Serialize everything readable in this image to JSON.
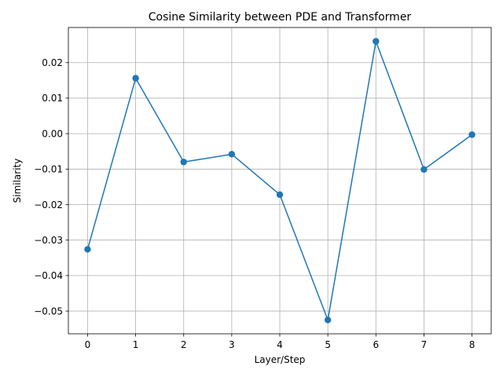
{
  "chart_data": {
    "type": "line",
    "title": "Cosine Similarity between PDE and Transformer",
    "xlabel": "Layer/Step",
    "ylabel": "Similarity",
    "x": [
      0,
      1,
      2,
      3,
      4,
      5,
      6,
      7,
      8
    ],
    "series": [
      {
        "values": [
          -0.0326,
          0.0156,
          -0.008,
          -0.0058,
          -0.0172,
          -0.0525,
          0.026,
          -0.0101,
          -0.0003
        ],
        "color": "#1f77b4",
        "marker": "circle"
      }
    ],
    "xlim": [
      -0.4,
      8.4
    ],
    "ylim": [
      -0.0564,
      0.0299
    ],
    "xticks": [
      0,
      1,
      2,
      3,
      4,
      5,
      6,
      7,
      8
    ],
    "xtick_labels": [
      "0",
      "1",
      "2",
      "3",
      "4",
      "5",
      "6",
      "7",
      "8"
    ],
    "yticks": [
      -0.05,
      -0.04,
      -0.03,
      -0.02,
      -0.01,
      0.0,
      0.01,
      0.02
    ],
    "ytick_labels": [
      "−0.05",
      "−0.04",
      "−0.03",
      "−0.02",
      "−0.01",
      "0.00",
      "0.01",
      "0.02"
    ],
    "grid": true,
    "legend": false
  }
}
